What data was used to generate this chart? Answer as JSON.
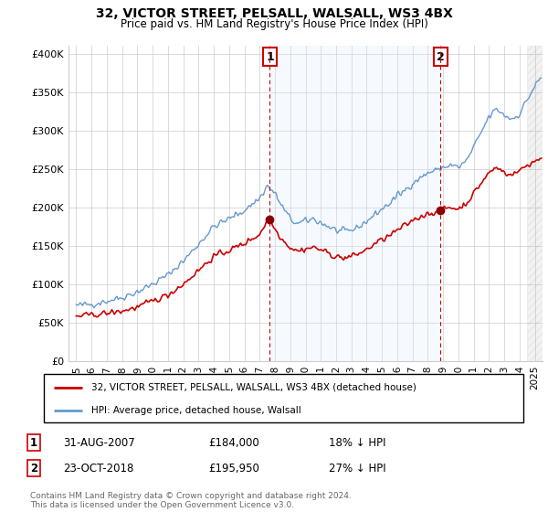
{
  "title": "32, VICTOR STREET, PELSALL, WALSALL, WS3 4BX",
  "subtitle": "Price paid vs. HM Land Registry's House Price Index (HPI)",
  "ylim": [
    0,
    410000
  ],
  "yticks": [
    0,
    50000,
    100000,
    150000,
    200000,
    250000,
    300000,
    350000,
    400000
  ],
  "ytick_labels": [
    "£0",
    "£50K",
    "£100K",
    "£150K",
    "£200K",
    "£250K",
    "£300K",
    "£350K",
    "£400K"
  ],
  "sale1_date_str": "31-AUG-2007",
  "sale1_price": 184000,
  "sale1_label": "18% ↓ HPI",
  "sale1_x": 2007.67,
  "sale2_date_str": "23-OCT-2018",
  "sale2_price": 195950,
  "sale2_label": "27% ↓ HPI",
  "sale2_x": 2018.83,
  "vline1_x": 2007.67,
  "vline2_x": 2018.83,
  "annotation1_num": "1",
  "annotation2_num": "2",
  "legend_house": "32, VICTOR STREET, PELSALL, WALSALL, WS3 4BX (detached house)",
  "legend_hpi": "HPI: Average price, detached house, Walsall",
  "footer": "Contains HM Land Registry data © Crown copyright and database right 2024.\nThis data is licensed under the Open Government Licence v3.0.",
  "house_line_color": "#cc0000",
  "hpi_line_color": "#6699cc",
  "vline_color": "#cc0000",
  "dot_color": "#8b0000",
  "fill_color": "#ddeeff",
  "hatch_color": "#cccccc",
  "xlim_left": 1994.5,
  "xlim_right": 2025.5,
  "hatch_start": 2024.5
}
